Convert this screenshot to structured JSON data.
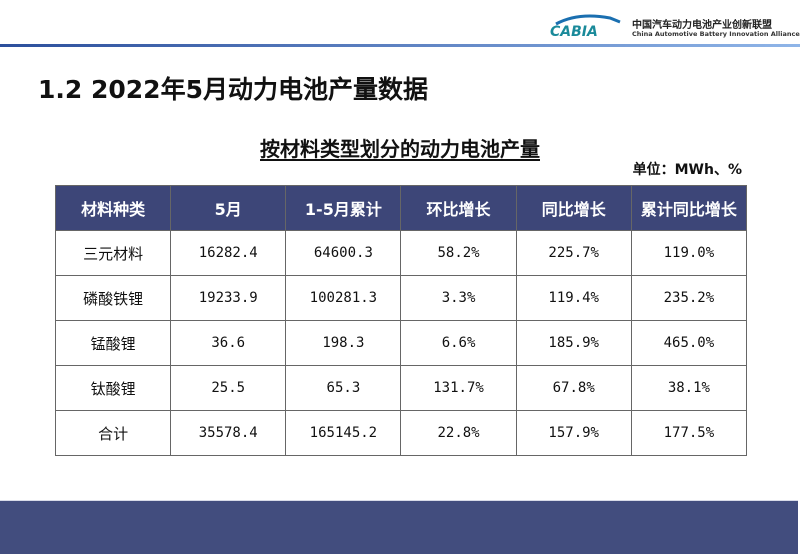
{
  "logo": {
    "text": "CABIA",
    "cn": "中国汽车动力电池产业创新联盟",
    "en": "China Automotive Battery Innovation Alliance"
  },
  "title": "1.2 2022年5月动力电池产量数据",
  "subtitle": "按材料类型划分的动力电池产量",
  "unit": "单位：MWh、%",
  "colors": {
    "header": "#3d4678",
    "band": "#424d7e",
    "accent": "#2c4f9c"
  },
  "table": {
    "headers": [
      "材料种类",
      "5月",
      "1-5月累计",
      "环比增长",
      "同比增长",
      "累计同比增长"
    ],
    "rows": [
      [
        "三元材料",
        "16282.4",
        "64600.3",
        "58.2%",
        "225.7%",
        "119.0%"
      ],
      [
        "磷酸铁锂",
        "19233.9",
        "100281.3",
        "3.3%",
        "119.4%",
        "235.2%"
      ],
      [
        "锰酸锂",
        "36.6",
        "198.3",
        "6.6%",
        "185.9%",
        "465.0%"
      ],
      [
        "钛酸锂",
        "25.5",
        "65.3",
        "131.7%",
        "67.8%",
        "38.1%"
      ],
      [
        "合计",
        "35578.4",
        "165145.2",
        "22.8%",
        "157.9%",
        "177.5%"
      ]
    ]
  }
}
